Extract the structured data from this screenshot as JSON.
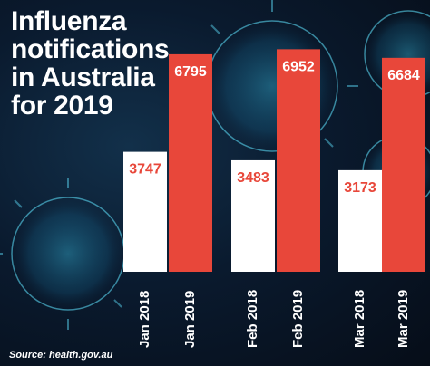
{
  "title_lines": [
    "Influenza",
    "notifications",
    "in Australia",
    "for 2019"
  ],
  "source": "Source: health.gov.au",
  "colors": {
    "bar_2018": "#ffffff",
    "bar_2019": "#e8473a",
    "label_2018": "#e8473a",
    "label_2019": "#ffffff",
    "tick_text": "#ffffff"
  },
  "chart_data": {
    "type": "bar",
    "categories": [
      "Jan 2018",
      "Jan 2019",
      "Feb 2018",
      "Feb 2019",
      "Mar 2018",
      "Mar 2019"
    ],
    "values": [
      3747,
      6795,
      3483,
      6952,
      3173,
      6684
    ],
    "title": "Influenza notifications in Australia for 2019",
    "xlabel": "",
    "ylabel": "",
    "ylim": [
      0,
      7500
    ],
    "grid": false,
    "data_labels": true
  }
}
